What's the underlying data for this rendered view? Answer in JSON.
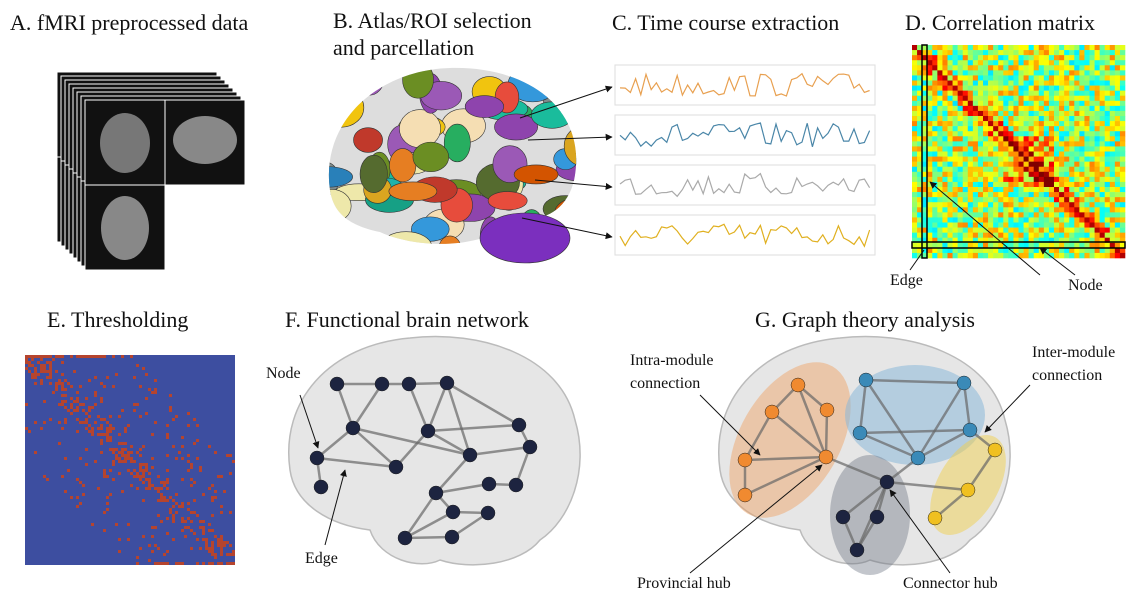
{
  "panels": {
    "a": {
      "title": "A. fMRI preprocessed data"
    },
    "b": {
      "title": [
        "B. Atlas/ROI selection",
        "and parcellation"
      ]
    },
    "c": {
      "title": "C. Time course extraction"
    },
    "d": {
      "title": "D. Correlation matrix",
      "edge_label": "Edge",
      "node_label": "Node"
    },
    "e": {
      "title": "E. Thresholding"
    },
    "f": {
      "title": "F. Functional brain network",
      "node_label": "Node",
      "edge_label": "Edge"
    },
    "g": {
      "title": "G. Graph theory analysis",
      "intra_module": [
        "Intra-module",
        "connection"
      ],
      "inter_module": [
        "Inter-module",
        "connection"
      ],
      "provincial_hub": "Provincial hub",
      "connector_hub": "Connector hub"
    }
  }
}
